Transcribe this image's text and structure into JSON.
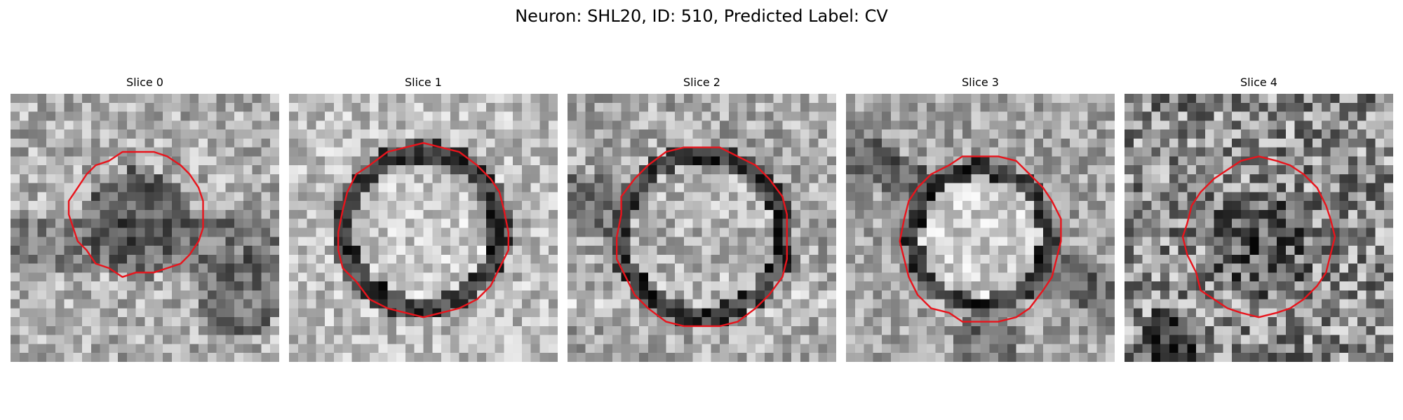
{
  "figure": {
    "suptitle": "Neuron: SHL20, ID: 510, Predicted Label: CV"
  },
  "colors": {
    "background": "#ffffff",
    "contour": "#e8141c",
    "colormap": "gray"
  },
  "panels": [
    {
      "title": "Slice 0",
      "center_tone": "dark",
      "contour_shape": "small-round"
    },
    {
      "title": "Slice 1",
      "center_tone": "bright",
      "contour_shape": "large-octagon"
    },
    {
      "title": "Slice 2",
      "center_tone": "bright",
      "contour_shape": "large-octagon"
    },
    {
      "title": "Slice 3",
      "center_tone": "bright",
      "contour_shape": "octagon"
    },
    {
      "title": "Slice 4",
      "center_tone": "dark",
      "contour_shape": "octagon"
    }
  ]
}
